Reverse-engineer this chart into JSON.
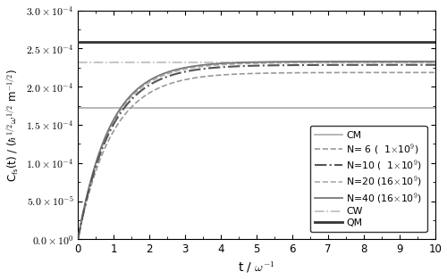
{
  "xlim": [
    0,
    10
  ],
  "ylim": [
    0,
    0.0003
  ],
  "yticks": [
    0.0,
    5e-05,
    0.0001,
    0.00015,
    0.0002,
    0.00025,
    0.0003
  ],
  "xticks": [
    0,
    1,
    2,
    3,
    4,
    5,
    6,
    7,
    8,
    9,
    10
  ],
  "cm_level": 0.000172,
  "qm_level": 0.0002585,
  "cw_level": 0.000232,
  "n6_plateau": 0.0002185,
  "n6_rate": 1.05,
  "n10_plateau": 0.0002285,
  "n10_rate": 1.08,
  "n20_plateau": 0.0002315,
  "n20_rate": 1.1,
  "n40_plateau": 0.000233,
  "n40_rate": 1.12,
  "cm_color": "#aaaaaa",
  "n6_color": "#999999",
  "n10_color": "#555555",
  "n20_color": "#aaaaaa",
  "n40_color": "#777777",
  "cw_color": "#bbbbbb",
  "qm_color": "#333333",
  "background_color": "#ffffff"
}
